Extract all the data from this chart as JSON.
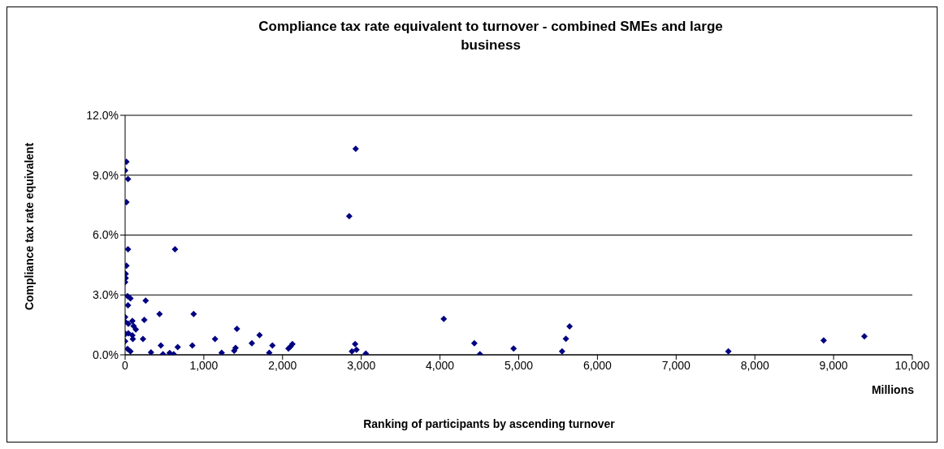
{
  "chart_data": {
    "type": "scatter",
    "title": "Compliance tax rate equivalent to turnover - combined SMEs and large business",
    "xlabel": "Ranking of participants by ascending turnover",
    "ylabel": "Compliance tax rate equivalent",
    "annotations": [
      "Millions"
    ],
    "x": [
      17,
      0,
      37,
      17,
      37,
      17,
      7,
      7,
      0,
      31,
      68,
      37,
      0,
      0,
      92,
      41,
      108,
      136,
      7,
      41,
      92,
      0,
      98,
      31,
      68,
      261,
      244,
      227,
      329,
      437,
      454,
      481,
      566,
      617,
      634,
      668,
      871,
      854,
      1142,
      1227,
      1386,
      1403,
      1420,
      1610,
      1708,
      1831,
      1871,
      2075,
      2102,
      2125,
      2847,
      2929,
      2881,
      2922,
      2939,
      3058,
      4048,
      4436,
      4507,
      4935,
      5551,
      5599,
      5646,
      7663,
      8874,
      9391
    ],
    "values": [
      9.67,
      9.23,
      8.81,
      7.65,
      5.29,
      4.46,
      4.06,
      3.84,
      3.64,
      2.94,
      2.83,
      2.48,
      1.89,
      1.66,
      1.7,
      1.56,
      1.44,
      1.27,
      1.05,
      1.08,
      0.98,
      0.68,
      0.79,
      0.29,
      0.17,
      2.72,
      1.75,
      0.79,
      0.12,
      2.04,
      0.47,
      0.03,
      0.09,
      0.03,
      5.29,
      0.39,
      2.04,
      0.47,
      0.79,
      0.1,
      0.2,
      0.35,
      1.3,
      0.58,
      0.99,
      0.1,
      0.47,
      0.32,
      0.42,
      0.54,
      6.95,
      10.32,
      0.17,
      0.54,
      0.25,
      0.06,
      1.8,
      0.58,
      0.03,
      0.32,
      0.17,
      0.8,
      1.42,
      0.17,
      0.72,
      0.93
    ],
    "color": "#000080",
    "marker": "diamond",
    "xlim": [
      0,
      10000
    ],
    "xticks": [
      0,
      {
        "value": 1000,
        "label": "1,000"
      },
      {
        "value": 2000,
        "label": "2,000"
      },
      {
        "value": 3000,
        "label": "3,000"
      },
      {
        "value": 4000,
        "label": "4,000"
      },
      {
        "value": 5000,
        "label": "5,000"
      },
      {
        "value": 6000,
        "label": "6,000"
      },
      {
        "value": 7000,
        "label": "7,000"
      },
      {
        "value": 8000,
        "label": "8,000"
      },
      {
        "value": 9000,
        "label": "9,000"
      },
      {
        "value": 10000,
        "label": "10,000"
      }
    ],
    "ylim": [
      0,
      12
    ],
    "yticks": [
      {
        "value": 0,
        "label": "0.0%"
      },
      {
        "value": 3,
        "label": "3.0%"
      },
      {
        "value": 6,
        "label": "6.0%"
      },
      {
        "value": 9,
        "label": "9.0%"
      },
      {
        "value": 12,
        "label": "12.0%"
      }
    ],
    "grid": "y"
  }
}
